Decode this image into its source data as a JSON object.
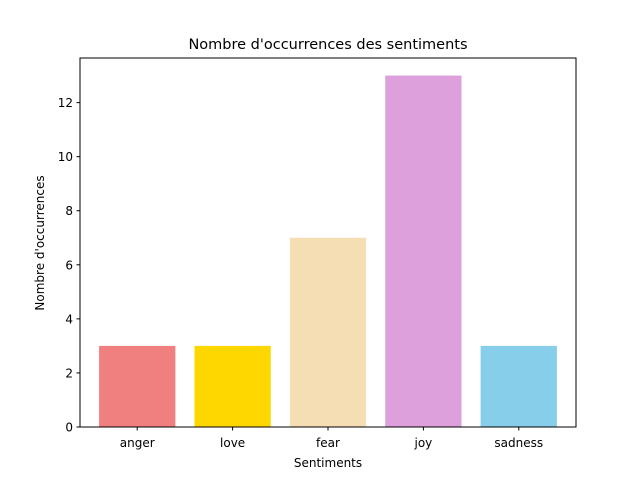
{
  "chart_data": {
    "type": "bar",
    "title": "Nombre d'occurrences des sentiments",
    "xlabel": "Sentiments",
    "ylabel": "Nombre d'occurrences",
    "categories": [
      "anger",
      "love",
      "fear",
      "joy",
      "sadness"
    ],
    "values": [
      3,
      3,
      7,
      13,
      3
    ],
    "colors": [
      "#f08080",
      "#ffd700",
      "#f5deb3",
      "#dda0dd",
      "#87ceeb"
    ],
    "ylim": [
      0,
      13.65
    ],
    "yticks": [
      0,
      2,
      4,
      6,
      8,
      10,
      12
    ],
    "grid": false
  }
}
